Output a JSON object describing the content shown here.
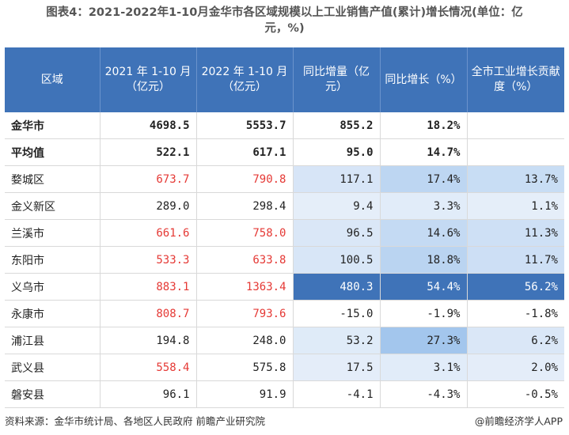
{
  "title_line1": "图表4：2021-2022年1-10月金华市各区域规模以上工业销售产值(累计)增长情况(单位：亿",
  "title_line2": "元，%)",
  "headers": [
    "区域",
    "2021 年 1-10 月（亿元）",
    "2022 年 1-10 月（亿元）",
    "同比增量（亿元）",
    "同比增长（%）",
    "全市工业增长贡献度（%）"
  ],
  "colors": {
    "header_bg": "#3f73b8",
    "red_text": "#e53935",
    "heat_light": "#e8f0fa",
    "heat_mid": "#c9dcf3",
    "heat_strong": "#3f73b8"
  },
  "rows": [
    {
      "region": "金华市",
      "v2021": "4698.5",
      "v2022": "5553.7",
      "increment": "855.2",
      "growth": "18.2%",
      "contrib": "",
      "bold": true,
      "red2021": false,
      "red2022": false,
      "shade_inc": 0,
      "shade_growth": 0,
      "shade_contrib": 0
    },
    {
      "region": "平均值",
      "v2021": "522.1",
      "v2022": "617.1",
      "increment": "95.0",
      "growth": "14.7%",
      "contrib": "",
      "bold": true,
      "red2021": false,
      "red2022": false,
      "shade_inc": 0,
      "shade_growth": 0,
      "shade_contrib": 0
    },
    {
      "region": "婺城区",
      "v2021": "673.7",
      "v2022": "790.8",
      "increment": "117.1",
      "growth": "17.4%",
      "contrib": "13.7%",
      "bold": false,
      "red2021": true,
      "red2022": true,
      "shade_inc": 0.12,
      "shade_growth": 0.3,
      "shade_contrib": 0.22
    },
    {
      "region": "金义新区",
      "v2021": "289.0",
      "v2022": "298.4",
      "increment": "9.4",
      "growth": "3.3%",
      "contrib": "1.1%",
      "bold": false,
      "red2021": false,
      "red2022": false,
      "shade_inc": 0.02,
      "shade_growth": 0.05,
      "shade_contrib": 0.02
    },
    {
      "region": "兰溪市",
      "v2021": "661.6",
      "v2022": "758.0",
      "increment": "96.5",
      "growth": "14.6%",
      "contrib": "11.3%",
      "bold": false,
      "red2021": true,
      "red2022": true,
      "shade_inc": 0.1,
      "shade_growth": 0.25,
      "shade_contrib": 0.18
    },
    {
      "region": "东阳市",
      "v2021": "533.3",
      "v2022": "633.8",
      "increment": "100.5",
      "growth": "18.8%",
      "contrib": "11.7%",
      "bold": false,
      "red2021": true,
      "red2022": true,
      "shade_inc": 0.11,
      "shade_growth": 0.32,
      "shade_contrib": 0.19
    },
    {
      "region": "义乌市",
      "v2021": "883.1",
      "v2022": "1363.4",
      "increment": "480.3",
      "growth": "54.4%",
      "contrib": "56.2%",
      "bold": false,
      "red2021": true,
      "red2022": true,
      "shade_inc": 1,
      "shade_growth": 1,
      "shade_contrib": 1
    },
    {
      "region": "永康市",
      "v2021": "808.7",
      "v2022": "793.6",
      "increment": "-15.0",
      "growth": "-1.9%",
      "contrib": "-1.8%",
      "bold": false,
      "red2021": true,
      "red2022": true,
      "shade_inc": 0,
      "shade_growth": 0,
      "shade_contrib": 0
    },
    {
      "region": "浦江县",
      "v2021": "194.8",
      "v2022": "248.0",
      "increment": "53.2",
      "growth": "27.3%",
      "contrib": "6.2%",
      "bold": false,
      "red2021": false,
      "red2022": false,
      "shade_inc": 0.06,
      "shade_growth": 0.48,
      "shade_contrib": 0.1
    },
    {
      "region": "武义县",
      "v2021": "558.4",
      "v2022": "575.8",
      "increment": "17.5",
      "growth": "3.1%",
      "contrib": "2.0%",
      "bold": false,
      "red2021": true,
      "red2022": false,
      "shade_inc": 0.03,
      "shade_growth": 0.05,
      "shade_contrib": 0.03
    },
    {
      "region": "磐安县",
      "v2021": "96.1",
      "v2022": "91.9",
      "increment": "-4.1",
      "growth": "-4.3%",
      "contrib": "-0.5%",
      "bold": false,
      "red2021": false,
      "red2022": false,
      "shade_inc": 0,
      "shade_growth": 0,
      "shade_contrib": 0
    }
  ],
  "footer": {
    "source": "资料来源：金华市统计局、各地区人民政府 前瞻产业研究院",
    "brand": "@前瞻经济学人APP"
  }
}
